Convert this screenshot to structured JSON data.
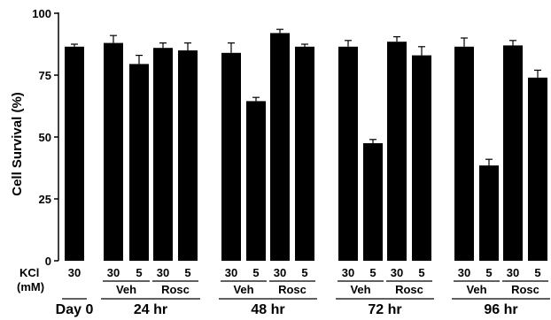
{
  "chart_data": {
    "type": "bar",
    "ylabel": "Cell Survival (%)",
    "ylim": [
      0,
      100
    ],
    "yticks": [
      0,
      25,
      50,
      75,
      100
    ],
    "row_labels": {
      "kcl": "KCl",
      "mm": "(mM)"
    },
    "bars": [
      {
        "time": "Day 0",
        "group": "",
        "kcl": "30",
        "value": 86.5,
        "error": 1.0
      },
      {
        "time": "24 hr",
        "group": "Veh",
        "kcl": "30",
        "value": 88.0,
        "error": 3.0
      },
      {
        "time": "24 hr",
        "group": "Veh",
        "kcl": "5",
        "value": 79.5,
        "error": 3.5
      },
      {
        "time": "24 hr",
        "group": "Rosc",
        "kcl": "30",
        "value": 86.0,
        "error": 2.0
      },
      {
        "time": "24 hr",
        "group": "Rosc",
        "kcl": "5",
        "value": 85.0,
        "error": 3.0
      },
      {
        "time": "48 hr",
        "group": "Veh",
        "kcl": "30",
        "value": 84.0,
        "error": 4.0
      },
      {
        "time": "48 hr",
        "group": "Veh",
        "kcl": "5",
        "value": 64.5,
        "error": 1.5
      },
      {
        "time": "48 hr",
        "group": "Rosc",
        "kcl": "30",
        "value": 92.0,
        "error": 1.5
      },
      {
        "time": "48 hr",
        "group": "Rosc",
        "kcl": "5",
        "value": 86.5,
        "error": 1.0
      },
      {
        "time": "72 hr",
        "group": "Veh",
        "kcl": "30",
        "value": 86.5,
        "error": 2.5
      },
      {
        "time": "72 hr",
        "group": "Veh",
        "kcl": "5",
        "value": 47.5,
        "error": 1.5
      },
      {
        "time": "72 hr",
        "group": "Rosc",
        "kcl": "30",
        "value": 88.5,
        "error": 2.0
      },
      {
        "time": "72 hr",
        "group": "Rosc",
        "kcl": "5",
        "value": 83.0,
        "error": 3.5
      },
      {
        "time": "96 hr",
        "group": "Veh",
        "kcl": "30",
        "value": 86.5,
        "error": 3.5
      },
      {
        "time": "96 hr",
        "group": "Veh",
        "kcl": "5",
        "value": 38.5,
        "error": 2.5
      },
      {
        "time": "96 hr",
        "group": "Rosc",
        "kcl": "30",
        "value": 87.0,
        "error": 2.0
      },
      {
        "time": "96 hr",
        "group": "Rosc",
        "kcl": "5",
        "value": 74.0,
        "error": 3.0
      }
    ],
    "time_labels": [
      "Day 0",
      "24 hr",
      "48 hr",
      "72 hr",
      "96 hr"
    ],
    "group_labels": [
      "Veh",
      "Rosc"
    ],
    "bar_color": "#000000",
    "grid": false,
    "legend": "none"
  }
}
